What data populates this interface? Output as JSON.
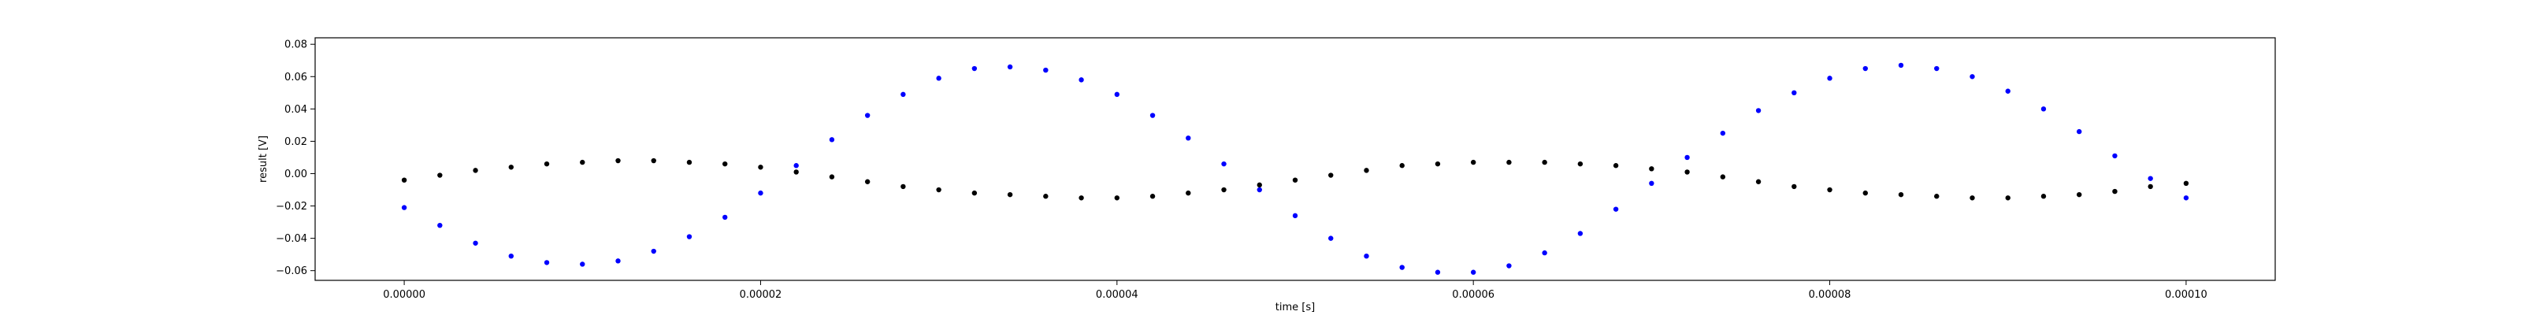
{
  "chart_data": {
    "type": "scatter",
    "xlabel": "time [s]",
    "ylabel": "result [V]",
    "xlim": [
      -5e-06,
      0.000105
    ],
    "ylim": [
      -0.066,
      0.084
    ],
    "grid": false,
    "x_ticks": [
      0,
      2e-05,
      4e-05,
      6e-05,
      8e-05,
      0.0001
    ],
    "x_tick_labels": [
      "0.00000",
      "0.00002",
      "0.00004",
      "0.00006",
      "0.00008",
      "0.00010"
    ],
    "y_ticks": [
      -0.06,
      -0.04,
      -0.02,
      0.0,
      0.02,
      0.04,
      0.06,
      0.08
    ],
    "y_tick_labels": [
      "−0.06",
      "−0.04",
      "−0.02",
      "0.00",
      "0.02",
      "0.04",
      "0.06",
      "0.08"
    ],
    "series": [
      {
        "color": "#0000ff",
        "marker": "dot",
        "x": [
          0,
          2e-06,
          4e-06,
          6e-06,
          8e-06,
          1e-05,
          1.2e-05,
          1.4e-05,
          1.6e-05,
          1.8e-05,
          2e-05,
          2.2e-05,
          2.4e-05,
          2.6e-05,
          2.8e-05,
          3e-05,
          3.2e-05,
          3.4e-05,
          3.6e-05,
          3.8e-05,
          4e-05,
          4.2e-05,
          4.4e-05,
          4.6e-05,
          4.8e-05,
          5e-05,
          5.2e-05,
          5.4e-05,
          5.6e-05,
          5.8e-05,
          6e-05,
          6.2e-05,
          6.4e-05,
          6.6e-05,
          6.8e-05,
          7e-05,
          7.2e-05,
          7.4e-05,
          7.6e-05,
          7.8e-05,
          8e-05,
          8.2e-05,
          8.4e-05,
          8.6e-05,
          8.8e-05,
          9e-05,
          9.2e-05,
          9.4e-05,
          9.6e-05,
          9.8e-05,
          0.0001
        ],
        "y": [
          -0.021,
          -0.032,
          -0.043,
          -0.051,
          -0.055,
          -0.056,
          -0.054,
          -0.048,
          -0.039,
          -0.027,
          -0.012,
          0.005,
          0.021,
          0.036,
          0.049,
          0.059,
          0.065,
          0.066,
          0.064,
          0.058,
          0.049,
          0.036,
          0.022,
          0.006,
          -0.01,
          -0.026,
          -0.04,
          -0.051,
          -0.058,
          -0.061,
          -0.061,
          -0.057,
          -0.049,
          -0.037,
          -0.022,
          -0.006,
          0.01,
          0.025,
          0.039,
          0.05,
          0.059,
          0.065,
          0.067,
          0.065,
          0.06,
          0.051,
          0.04,
          0.026,
          0.011,
          -0.003,
          -0.015
        ]
      },
      {
        "color": "#000000",
        "marker": "dot",
        "x": [
          0,
          2e-06,
          4e-06,
          6e-06,
          8e-06,
          1e-05,
          1.2e-05,
          1.4e-05,
          1.6e-05,
          1.8e-05,
          2e-05,
          2.2e-05,
          2.4e-05,
          2.6e-05,
          2.8e-05,
          3e-05,
          3.2e-05,
          3.4e-05,
          3.6e-05,
          3.8e-05,
          4e-05,
          4.2e-05,
          4.4e-05,
          4.6e-05,
          4.8e-05,
          5e-05,
          5.2e-05,
          5.4e-05,
          5.6e-05,
          5.8e-05,
          6e-05,
          6.2e-05,
          6.4e-05,
          6.6e-05,
          6.8e-05,
          7e-05,
          7.2e-05,
          7.4e-05,
          7.6e-05,
          7.8e-05,
          8e-05,
          8.2e-05,
          8.4e-05,
          8.6e-05,
          8.8e-05,
          9e-05,
          9.2e-05,
          9.4e-05,
          9.6e-05,
          9.8e-05,
          0.0001
        ],
        "y": [
          -0.004,
          -0.001,
          0.002,
          0.004,
          0.006,
          0.007,
          0.008,
          0.008,
          0.007,
          0.006,
          0.004,
          0.001,
          -0.002,
          -0.005,
          -0.008,
          -0.01,
          -0.012,
          -0.013,
          -0.014,
          -0.015,
          -0.015,
          -0.014,
          -0.012,
          -0.01,
          -0.007,
          -0.004,
          -0.001,
          0.002,
          0.005,
          0.006,
          0.007,
          0.007,
          0.007,
          0.006,
          0.005,
          0.003,
          0.001,
          -0.002,
          -0.005,
          -0.008,
          -0.01,
          -0.012,
          -0.013,
          -0.014,
          -0.015,
          -0.015,
          -0.014,
          -0.013,
          -0.011,
          -0.008,
          -0.006
        ]
      }
    ]
  }
}
